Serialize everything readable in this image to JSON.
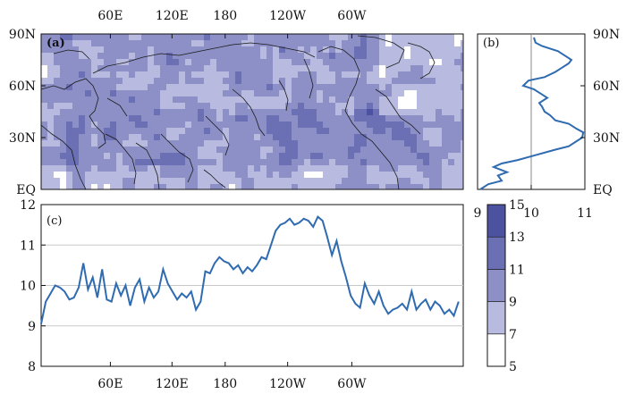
{
  "chart_data": [
    {
      "panel_label": "(a)",
      "type": "heatmap",
      "description_note": "Global-longitude map, equator to 90N, filled contours on a 5-15 scale with coastlines",
      "x_top_ticks": [
        "60E",
        "120E",
        "180",
        "120W",
        "60W"
      ],
      "y_ticks": [
        "EQ",
        "30N",
        "60N",
        "90N"
      ],
      "y_ticks_right": [
        "EQ",
        "30N",
        "60N",
        "90N"
      ],
      "colorbar": {
        "levels": [
          "5",
          "7",
          "9",
          "11",
          "13",
          "15"
        ],
        "range": [
          5,
          15
        ],
        "colors": [
          "#ffffff",
          "#b8bbdf",
          "#8d90c7",
          "#6b6fb4",
          "#4d52a0",
          "#363c8e"
        ]
      }
    },
    {
      "panel_label": "(b)",
      "type": "line",
      "orientation": "vertical profile (value vs latitude)",
      "x_ticks": [
        "9",
        "10",
        "11"
      ],
      "xlim": [
        9,
        11
      ],
      "reference_line_x": 10,
      "lat": [
        0,
        3,
        5,
        8,
        10,
        13,
        15,
        17,
        20,
        23,
        25,
        28,
        30,
        33,
        35,
        38,
        40,
        43,
        45,
        48,
        50,
        53,
        55,
        58,
        60,
        63,
        65,
        68,
        70,
        73,
        75,
        78,
        80,
        83,
        85,
        88
      ],
      "values": [
        9.05,
        9.2,
        9.45,
        9.38,
        9.55,
        9.3,
        9.45,
        9.75,
        10.1,
        10.45,
        10.7,
        10.85,
        10.95,
        10.97,
        10.85,
        10.7,
        10.45,
        10.35,
        10.25,
        10.2,
        10.15,
        10.3,
        10.2,
        10.05,
        9.85,
        9.95,
        10.25,
        10.45,
        10.55,
        10.7,
        10.75,
        10.6,
        10.5,
        10.2,
        10.08,
        10.05
      ]
    },
    {
      "panel_label": "(c)",
      "type": "line",
      "y_ticks": [
        "8",
        "9",
        "10",
        "11",
        "12"
      ],
      "ylim": [
        8,
        12
      ],
      "x_ticks": [
        "60E",
        "120E",
        "180",
        "120W",
        "60W"
      ],
      "xlim": [
        0,
        360
      ],
      "grid_y": [
        9,
        10,
        11
      ],
      "lon": [
        0,
        4,
        8,
        12,
        16,
        20,
        24,
        28,
        32,
        36,
        40,
        44,
        48,
        52,
        56,
        60,
        64,
        68,
        72,
        76,
        80,
        84,
        88,
        92,
        96,
        100,
        104,
        108,
        112,
        116,
        120,
        124,
        128,
        132,
        136,
        140,
        144,
        148,
        152,
        156,
        160,
        164,
        168,
        172,
        176,
        180,
        184,
        188,
        192,
        196,
        200,
        204,
        208,
        212,
        216,
        220,
        224,
        228,
        232,
        236,
        240,
        244,
        248,
        252,
        256,
        260,
        264,
        268,
        272,
        276,
        280,
        284,
        288,
        292,
        296,
        300,
        304,
        308,
        312,
        316,
        320,
        324,
        328,
        332,
        336,
        340,
        344,
        348,
        352,
        356
      ],
      "values": [
        9.05,
        9.6,
        9.8,
        10.0,
        9.95,
        9.85,
        9.65,
        9.7,
        9.95,
        10.55,
        9.9,
        10.2,
        9.7,
        10.4,
        9.65,
        9.6,
        10.05,
        9.75,
        10.0,
        9.5,
        9.95,
        10.15,
        9.6,
        9.95,
        9.7,
        9.85,
        10.4,
        10.05,
        9.85,
        9.65,
        9.8,
        9.7,
        9.85,
        9.4,
        9.6,
        10.35,
        10.3,
        10.55,
        10.7,
        10.6,
        10.55,
        10.4,
        10.5,
        10.3,
        10.45,
        10.35,
        10.5,
        10.7,
        10.65,
        11.0,
        11.35,
        11.5,
        11.55,
        11.65,
        11.5,
        11.55,
        11.65,
        11.6,
        11.45,
        11.7,
        11.6,
        11.2,
        10.75,
        11.1,
        10.6,
        10.2,
        9.75,
        9.55,
        9.45,
        10.05,
        9.75,
        9.55,
        9.85,
        9.5,
        9.3,
        9.4,
        9.45,
        9.55,
        9.4,
        9.85,
        9.4,
        9.55,
        9.65,
        9.4,
        9.6,
        9.5,
        9.3,
        9.4,
        9.25,
        9.6
      ]
    }
  ]
}
